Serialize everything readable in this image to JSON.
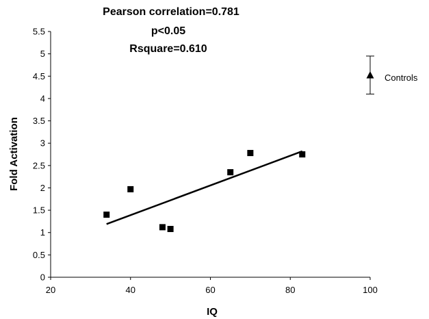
{
  "chart_data": {
    "type": "scatter",
    "title_lines": [
      "Pearson correlation=0.781",
      "p<0.05",
      "Rsquare=0.610"
    ],
    "xlabel": "IQ",
    "ylabel": "Fold Activation",
    "xlim": [
      20,
      100
    ],
    "ylim": [
      0,
      5.5
    ],
    "x_ticks": [
      "20",
      "40",
      "60",
      "80",
      "100"
    ],
    "y_ticks": [
      "0",
      "0.5",
      "1",
      "1.5",
      "2",
      "2.5",
      "3",
      "3.5",
      "4",
      "4.5",
      "5",
      "5.5"
    ],
    "grid": false,
    "series": [
      {
        "marker": "square",
        "points": [
          {
            "x": 34,
            "y": 1.4
          },
          {
            "x": 40,
            "y": 1.97
          },
          {
            "x": 48,
            "y": 1.12
          },
          {
            "x": 50,
            "y": 1.08
          },
          {
            "x": 65,
            "y": 2.35
          },
          {
            "x": 70,
            "y": 2.78
          },
          {
            "x": 83,
            "y": 2.75
          }
        ]
      },
      {
        "name": "Controls",
        "marker": "triangle",
        "points": [
          {
            "x": 100,
            "y": 4.52,
            "err_low": 4.1,
            "err_high": 4.95
          }
        ]
      }
    ],
    "trendline": {
      "x": [
        34,
        83
      ],
      "y": [
        1.19,
        2.82
      ]
    },
    "legend": [
      "Controls"
    ],
    "legend_placement": "right of the Controls point"
  }
}
